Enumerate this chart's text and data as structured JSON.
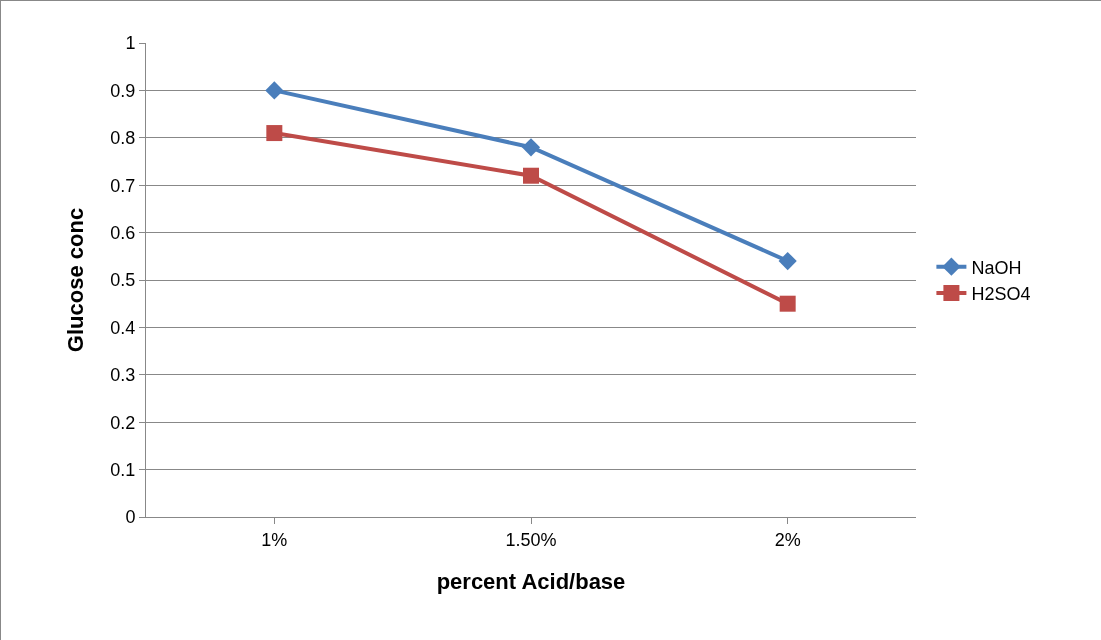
{
  "chart_data": {
    "type": "line",
    "xlabel": "percent Acid/base",
    "ylabel": "Glucose conc",
    "categories": [
      "1%",
      "1.50%",
      "2%"
    ],
    "series": [
      {
        "name": "NaOH",
        "color": "#4a7ebb",
        "marker": "diamond",
        "values": [
          0.9,
          0.78,
          0.54
        ]
      },
      {
        "name": "H2SO4",
        "color": "#be4b48",
        "marker": "square",
        "values": [
          0.81,
          0.72,
          0.45
        ]
      }
    ],
    "ylim": [
      0,
      1
    ],
    "yticks": [
      0,
      0.1,
      0.2,
      0.3,
      0.4,
      0.5,
      0.6,
      0.7,
      0.8,
      0.9,
      1
    ],
    "grid": "y",
    "legend": "right",
    "line_style": "solid"
  }
}
